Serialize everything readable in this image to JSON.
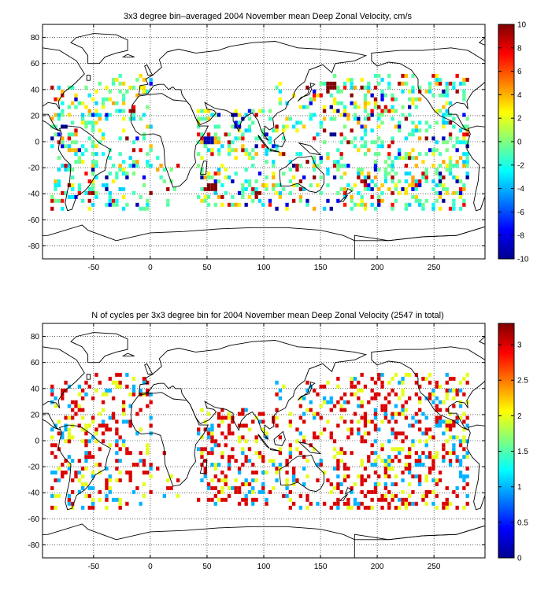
{
  "chart_data": [
    {
      "type": "heatmap",
      "title": "3x3 degree bin–averaged 2004 November mean Deep Zonal Velocity, cm/s",
      "xlim": [
        -95,
        295
      ],
      "ylim": [
        -90,
        90
      ],
      "x_ticks": [
        -50,
        0,
        50,
        100,
        150,
        200,
        250
      ],
      "y_ticks": [
        -80,
        -60,
        -40,
        -20,
        0,
        20,
        40,
        60,
        80
      ],
      "grid": true,
      "colormap": "jet",
      "colorbar": {
        "position": "right",
        "range": [
          -10,
          10
        ],
        "ticks": [
          10,
          8,
          6,
          4,
          2,
          0,
          -2,
          -4,
          -6,
          -8,
          -10
        ]
      },
      "bin_size_deg": 3,
      "approx_value_mix": {
        "green_cyan_near_-2_to_0": 0.45,
        "yellow_orange_2_to_4": 0.2,
        "cyan_-4": 0.15,
        "red_darkred_above_6": 0.12,
        "blue_below_-6": 0.08
      },
      "hot_spots": [
        {
          "lon": 50,
          "lat": -2,
          "value": -9,
          "label": "Somali current (blue)"
        },
        {
          "lon": 53,
          "lat": -38,
          "value": 10,
          "label": "Agulhas (dark red)"
        },
        {
          "lon": 158,
          "lat": 40,
          "value": 10,
          "label": "Kuroshio (dark red)"
        }
      ]
    },
    {
      "type": "heatmap",
      "title": "N of cycles per 3x3 degree bin for 2004 November mean Deep Zonal Velocity (2547 in total)",
      "xlim": [
        -95,
        295
      ],
      "ylim": [
        -90,
        90
      ],
      "x_ticks": [
        -50,
        0,
        50,
        100,
        150,
        200,
        250
      ],
      "y_ticks": [
        -80,
        -60,
        -40,
        -20,
        0,
        20,
        40,
        60,
        80
      ],
      "grid": true,
      "colormap": "jet",
      "colorbar": {
        "position": "right",
        "range": [
          0,
          3.3
        ],
        "ticks": [
          3,
          2.5,
          2,
          1.5,
          1,
          0.5,
          0
        ]
      },
      "bin_size_deg": 3,
      "approx_value_mix": {
        "red_3": 0.55,
        "yellow_2": 0.25,
        "cyan_1": 0.2
      },
      "total_cycles": 2547
    }
  ]
}
